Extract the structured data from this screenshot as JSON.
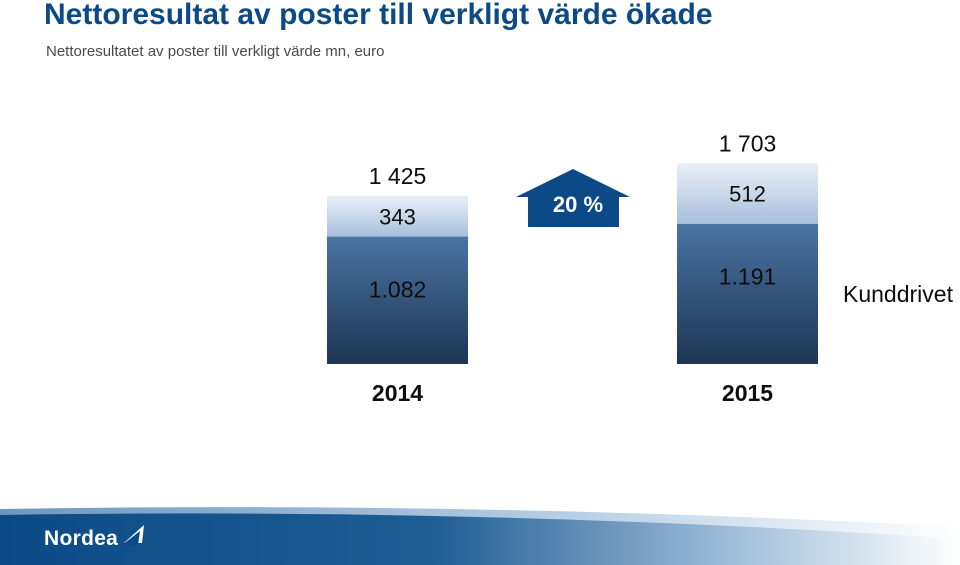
{
  "header": {
    "title": "Nettoresultat av poster till verkligt värde ökade",
    "subtitle": "Nettoresultatet av poster till verkligt värde mn, euro"
  },
  "chart_data": {
    "type": "bar",
    "stacked": true,
    "categories": [
      "2014",
      "2015"
    ],
    "series": [
      {
        "name": "Kunddrivet",
        "values": [
          1082,
          1191
        ],
        "labels": [
          "1.082",
          "1.191"
        ]
      },
      {
        "name": "",
        "values": [
          343,
          512
        ],
        "labels": [
          "343",
          "512"
        ]
      }
    ],
    "totals": [
      1425,
      1703
    ],
    "total_labels": [
      "1 425",
      "1 703"
    ],
    "change_label": "20 %",
    "change_direction": "up",
    "series_colors": [
      "#2f5680",
      "#c7d6ea"
    ]
  },
  "brand": {
    "logo_text": "Nordea",
    "accent": "#0b4a86"
  }
}
